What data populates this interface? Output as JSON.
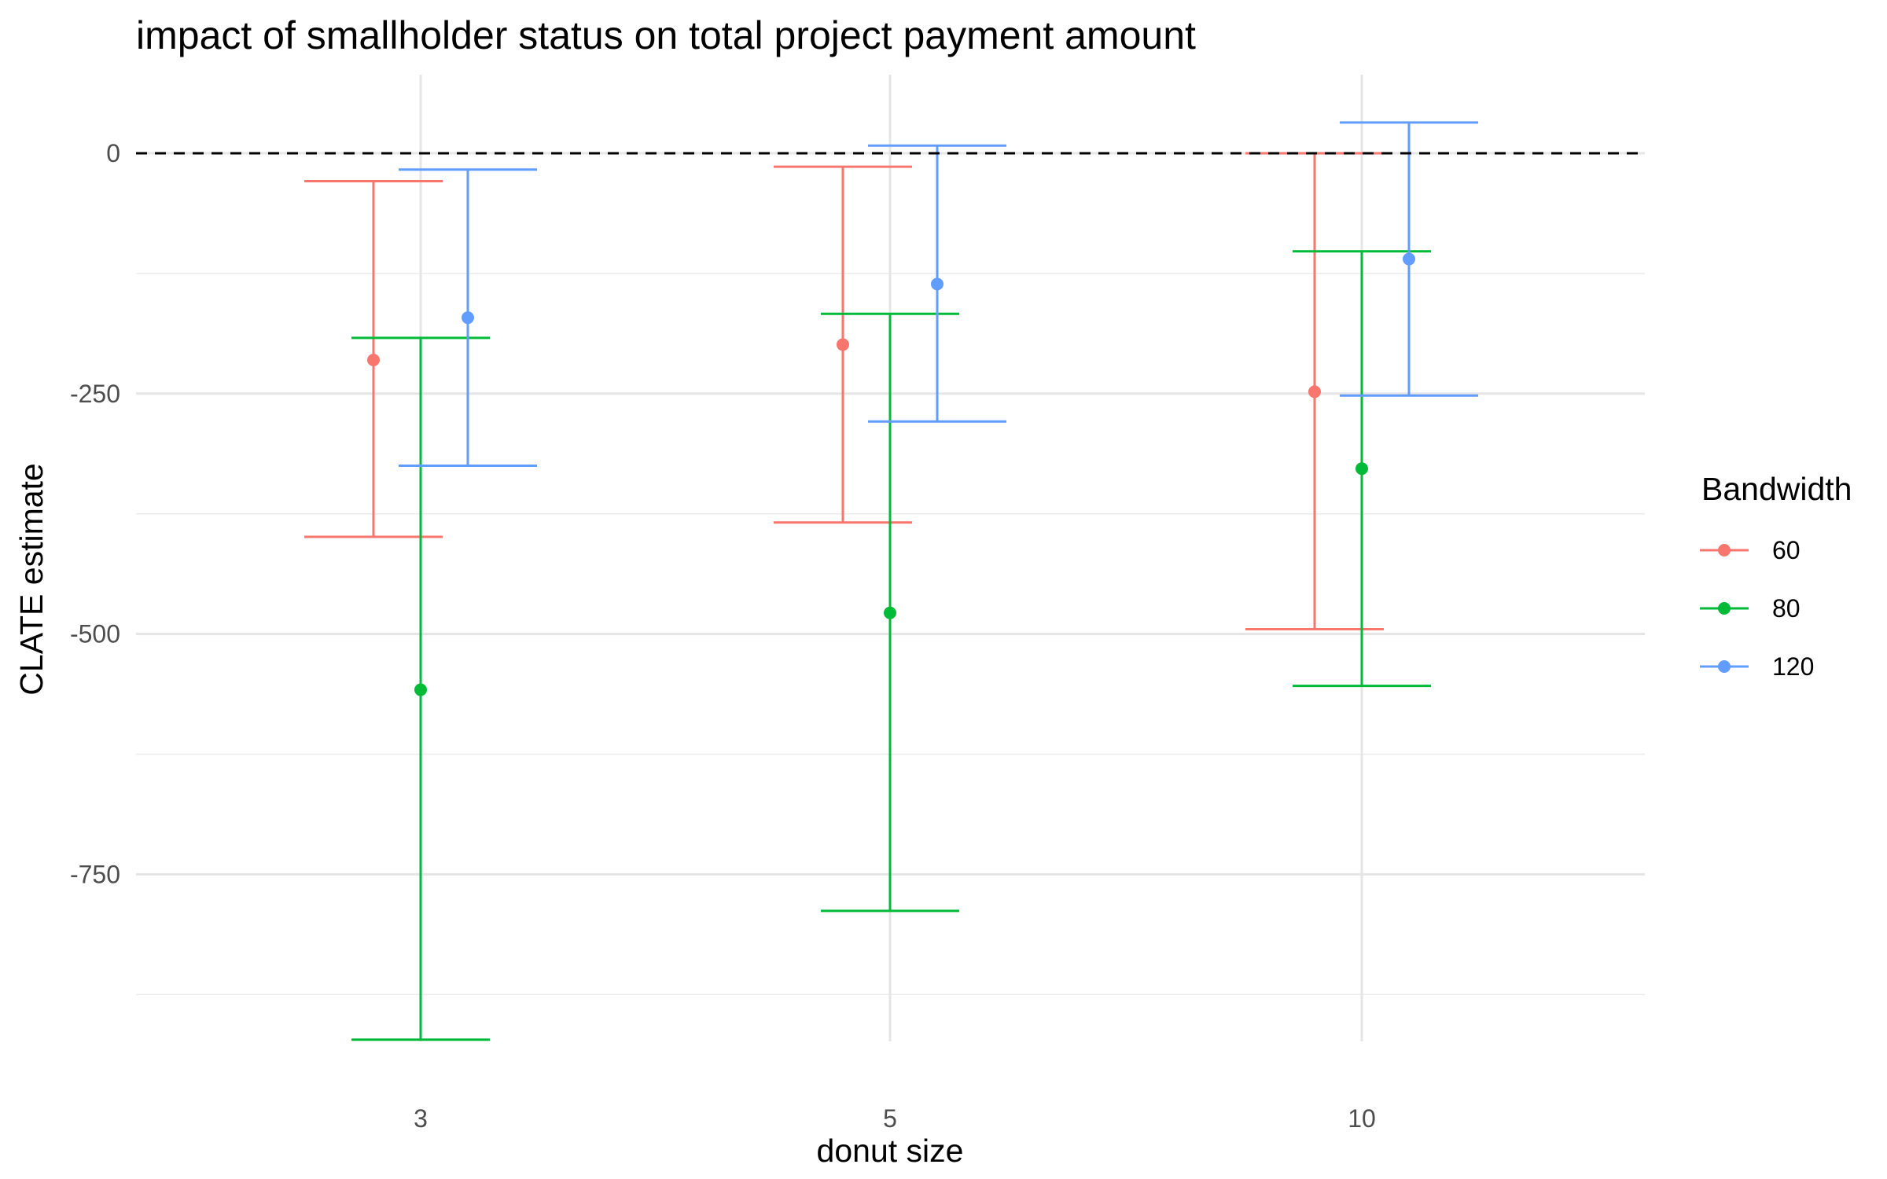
{
  "chart_data": {
    "type": "errorbar",
    "title": "impact of smallholder status on total project payment amount",
    "xlabel": "donut size",
    "ylabel": "CLATE estimate",
    "categories": [
      "3",
      "5",
      "10"
    ],
    "y_ticks": [
      0,
      -250,
      -500,
      -750
    ],
    "y_tick_labels": [
      "0",
      "-250",
      "-500",
      "-750"
    ],
    "ylim": [
      -950,
      80
    ],
    "reference_line": 0,
    "grid": true,
    "legend": {
      "title": "Bandwidth",
      "position": "right"
    },
    "series": [
      {
        "name": "60",
        "color": "#F8766D",
        "estimate": [
          -215,
          -199,
          -248
        ],
        "lower": [
          -399,
          -384,
          -495
        ],
        "upper": [
          -29,
          -14,
          0
        ]
      },
      {
        "name": "80",
        "color": "#00BA38",
        "estimate": [
          -558,
          -478,
          -328
        ],
        "lower": [
          -922,
          -788,
          -554
        ],
        "upper": [
          -192,
          -167,
          -102
        ]
      },
      {
        "name": "120",
        "color": "#619CFF",
        "estimate": [
          -171,
          -136,
          -110
        ],
        "lower": [
          -325,
          -279,
          -252
        ],
        "upper": [
          -17,
          8,
          32
        ]
      }
    ]
  }
}
